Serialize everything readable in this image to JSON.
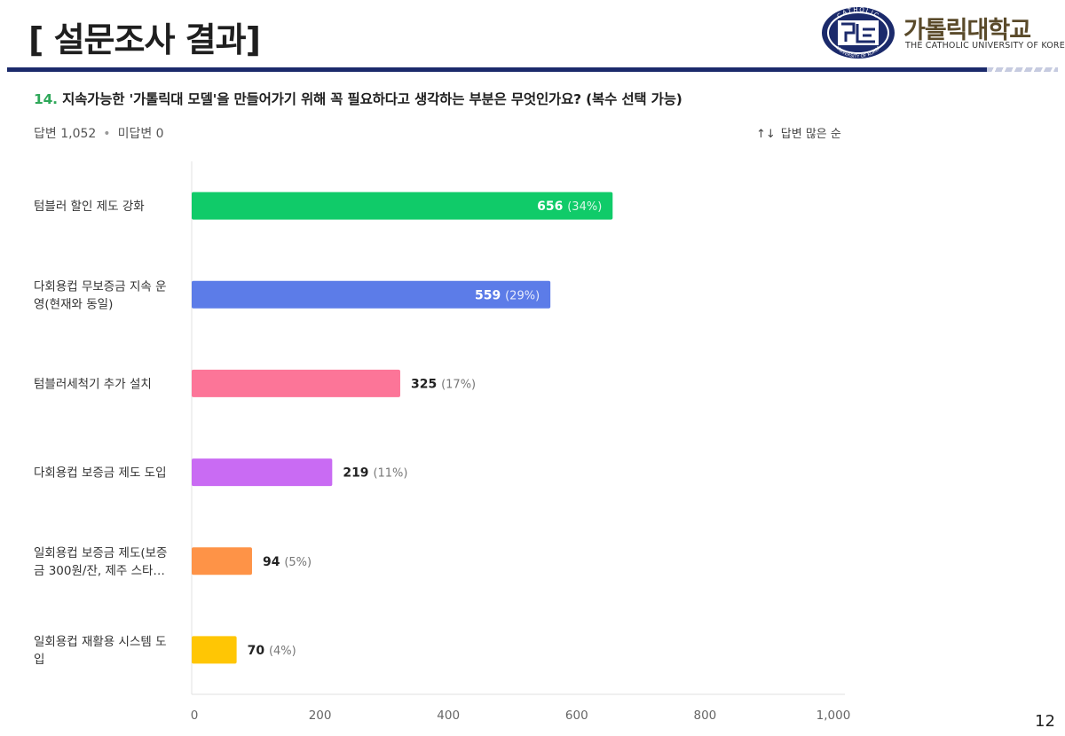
{
  "slide": {
    "title": "[ 설문조사 결과]",
    "page_number": "12"
  },
  "logo": {
    "name": "가톨릭대학교",
    "english_name": "THE CATHOLIC UNIVERSITY OF KOREA",
    "emblem_top_text": "CATHOLIC",
    "emblem_bottom_text": "UNIVERSITY OF KOREA",
    "emblem_color": "#1b2a6b"
  },
  "question": {
    "number": "14.",
    "text": "지속가능한 '가톨릭대 모델'을 만들어가기 위해 꼭 필요하다고 생각하는 부분은 무엇인가요? (복수 선택 가능)"
  },
  "summary": {
    "answered": "답변 1,052",
    "separator": "•",
    "unanswered": "미답변 0"
  },
  "sort": {
    "icon": "sort-arrows-icon",
    "label": "답변 많은 순"
  },
  "chart_data": {
    "type": "bar",
    "orientation": "horizontal",
    "categories": [
      [
        "텀블러 할인 제도 강화"
      ],
      [
        "다회용컵 무보증금 지속 운",
        "영(현재와 동일)"
      ],
      [
        "텀블러세척기 추가 설치"
      ],
      [
        "다회용컵 보증금 제도 도입"
      ],
      [
        "일회용컵 보증금 제도(보증",
        "금 300원/잔, 제주 스타…"
      ],
      [
        "일회용컵 재활용 시스템 도",
        "입"
      ]
    ],
    "values": [
      656,
      559,
      325,
      219,
      94,
      70
    ],
    "percent_labels": [
      "(34%)",
      "(29%)",
      "(17%)",
      "(11%)",
      "(5%)",
      "(4%)"
    ],
    "value_labels": [
      "656",
      "559",
      "325",
      "219",
      "94",
      "70"
    ],
    "colors": [
      "#10cb69",
      "#5c7ce8",
      "#fc7598",
      "#c96bf3",
      "#fe9347",
      "#ffc604"
    ],
    "label_inside": [
      true,
      true,
      false,
      false,
      false,
      false
    ],
    "xlim": [
      0,
      1000
    ],
    "xticks": [
      0,
      200,
      400,
      600,
      800,
      1000
    ],
    "xtick_labels": [
      "0",
      "200",
      "400",
      "600",
      "800",
      "1,000"
    ],
    "grid": false
  }
}
